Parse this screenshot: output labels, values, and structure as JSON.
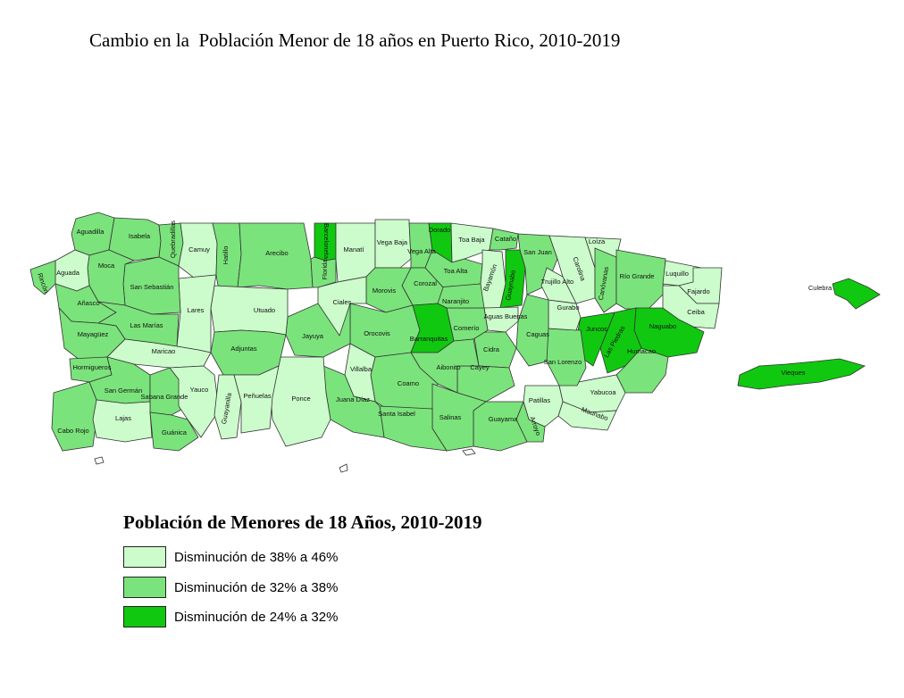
{
  "title": "Cambio en la  Población Menor de 18 años en Puerto Rico, 2010-2019",
  "colors": {
    "light": "#ccfccc",
    "medium": "#7be37b",
    "dark": "#10c810",
    "border": "#333333"
  },
  "legend": {
    "title": "Población de Menores de 18 Años, 2010-2019",
    "items": [
      {
        "label": "Disminución de 38% a 46%",
        "color": "#ccfccc"
      },
      {
        "label": "Disminución de 32% a 38%",
        "color": "#7be37b"
      },
      {
        "label": "Disminución de 24% a 32%",
        "color": "#10c810"
      }
    ]
  },
  "municipalities": [
    {
      "name": "Aguadilla",
      "class": "medium"
    },
    {
      "name": "Isabela",
      "class": "medium"
    },
    {
      "name": "Quebradillas",
      "class": "medium"
    },
    {
      "name": "Camuy",
      "class": "light"
    },
    {
      "name": "Hatillo",
      "class": "medium"
    },
    {
      "name": "Arecibo",
      "class": "medium"
    },
    {
      "name": "Barceloneta",
      "class": "dark"
    },
    {
      "name": "Florida",
      "class": "medium"
    },
    {
      "name": "Manatí",
      "class": "light"
    },
    {
      "name": "Vega Baja",
      "class": "light"
    },
    {
      "name": "Vega Alta",
      "class": "medium"
    },
    {
      "name": "Dorado",
      "class": "dark"
    },
    {
      "name": "Toa Baja",
      "class": "light"
    },
    {
      "name": "Cataño",
      "class": "medium"
    },
    {
      "name": "Toa Alta",
      "class": "medium"
    },
    {
      "name": "Bayamón",
      "class": "light"
    },
    {
      "name": "Guaynabo",
      "class": "dark"
    },
    {
      "name": "San Juan",
      "class": "medium"
    },
    {
      "name": "Carolina",
      "class": "light"
    },
    {
      "name": "Loíza",
      "class": "light"
    },
    {
      "name": "Canóvanas",
      "class": "medium"
    },
    {
      "name": "Río Grande",
      "class": "medium"
    },
    {
      "name": "Luquillo",
      "class": "light"
    },
    {
      "name": "Fajardo",
      "class": "light"
    },
    {
      "name": "Ceiba",
      "class": "light"
    },
    {
      "name": "Culebra",
      "class": "dark"
    },
    {
      "name": "Vieques",
      "class": "dark"
    },
    {
      "name": "Naguabo",
      "class": "dark"
    },
    {
      "name": "Las Piedras",
      "class": "dark"
    },
    {
      "name": "Juncos",
      "class": "dark"
    },
    {
      "name": "Humacao",
      "class": "medium"
    },
    {
      "name": "Yabucoa",
      "class": "light"
    },
    {
      "name": "Maunabo",
      "class": "light"
    },
    {
      "name": "Patillas",
      "class": "light"
    },
    {
      "name": "Arroyo",
      "class": "medium"
    },
    {
      "name": "Guayama",
      "class": "medium"
    },
    {
      "name": "San Lorenzo",
      "class": "medium"
    },
    {
      "name": "Gurabo",
      "class": "light"
    },
    {
      "name": "Trujillo Alto",
      "class": "light"
    },
    {
      "name": "Caguas",
      "class": "medium"
    },
    {
      "name": "Aguas Buenas",
      "class": "light"
    },
    {
      "name": "Cidra",
      "class": "medium"
    },
    {
      "name": "Cayey",
      "class": "medium"
    },
    {
      "name": "Comerío",
      "class": "medium"
    },
    {
      "name": "Naranjito",
      "class": "medium"
    },
    {
      "name": "Corozal",
      "class": "medium"
    },
    {
      "name": "Morovis",
      "class": "medium"
    },
    {
      "name": "Orocovis",
      "class": "medium"
    },
    {
      "name": "Barranquitas",
      "class": "dark"
    },
    {
      "name": "Aibonito",
      "class": "medium"
    },
    {
      "name": "Coamo",
      "class": "medium"
    },
    {
      "name": "Salinas",
      "class": "medium"
    },
    {
      "name": "Santa Isabel",
      "class": "medium"
    },
    {
      "name": "Villalba",
      "class": "light"
    },
    {
      "name": "Juana Díaz",
      "class": "medium"
    },
    {
      "name": "Ponce",
      "class": "light"
    },
    {
      "name": "Jayuya",
      "class": "medium"
    },
    {
      "name": "Ciales",
      "class": "light"
    },
    {
      "name": "Utuado",
      "class": "light"
    },
    {
      "name": "Adjuntas",
      "class": "medium"
    },
    {
      "name": "Lares",
      "class": "light"
    },
    {
      "name": "San Sebastián",
      "class": "medium"
    },
    {
      "name": "Moca",
      "class": "medium"
    },
    {
      "name": "Aguada",
      "class": "light"
    },
    {
      "name": "Rincón",
      "class": "medium"
    },
    {
      "name": "Añasco",
      "class": "medium"
    },
    {
      "name": "Las Marías",
      "class": "medium"
    },
    {
      "name": "Mayagüez",
      "class": "medium"
    },
    {
      "name": "Maricao",
      "class": "light"
    },
    {
      "name": "Hormigueros",
      "class": "medium"
    },
    {
      "name": "San Germán",
      "class": "medium"
    },
    {
      "name": "Sabana Grande",
      "class": "medium"
    },
    {
      "name": "Cabo Rojo",
      "class": "medium"
    },
    {
      "name": "Lajas",
      "class": "light"
    },
    {
      "name": "Guánica",
      "class": "medium"
    },
    {
      "name": "Yauco",
      "class": "light"
    },
    {
      "name": "Guayanilla",
      "class": "light"
    },
    {
      "name": "Peñuelas",
      "class": "light"
    }
  ]
}
